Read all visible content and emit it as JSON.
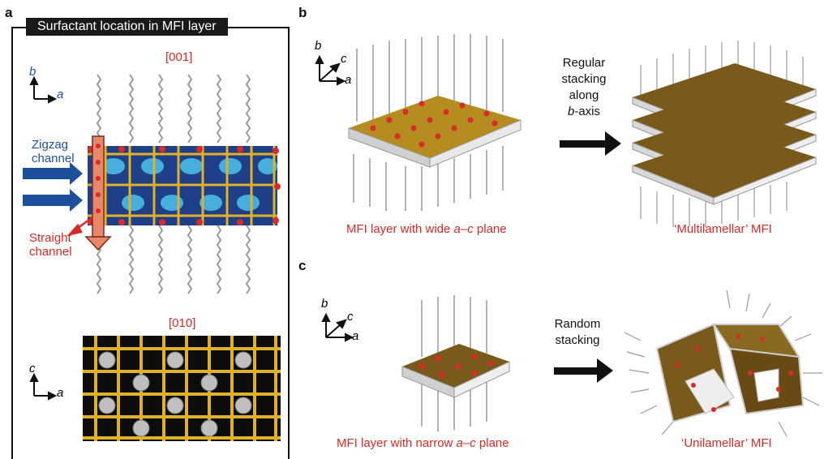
{
  "panel_a": {
    "label": "a",
    "title": "Surfactant location in MFI layer",
    "view_top": "[001]",
    "view_bottom": "[010]",
    "axes_top": {
      "vertical": "b",
      "horizontal": "a"
    },
    "axes_bottom": {
      "vertical": "c",
      "horizontal": "a"
    },
    "zigzag_line1": "Zigzag",
    "zigzag_line2": "channel",
    "straight_line1": "Straight",
    "straight_line2": "channel"
  },
  "panel_b": {
    "label": "b",
    "axes": {
      "vertical": "b",
      "diagonal": "c",
      "horizontal": "a"
    },
    "arrow_line1": "Regular",
    "arrow_line2": "stacking",
    "arrow_line3": "along",
    "arrow_line4_italic": "b",
    "arrow_line4_rest": "-axis",
    "left_caption_pre": "MFI layer with wide ",
    "left_caption_italic": "a–c",
    "left_caption_post": " plane",
    "right_caption": "‘Multilamellar’ MFI"
  },
  "panel_c": {
    "label": "c",
    "axes": {
      "vertical": "b",
      "diagonal": "c",
      "horizontal": "a"
    },
    "arrow_line1": "Random",
    "arrow_line2": "stacking",
    "left_caption_pre": "MFI layer with narrow ",
    "left_caption_italic": "a–c",
    "left_caption_post": " plane",
    "right_caption": "‘Unilamellar’ MFI"
  },
  "colors": {
    "caption_red": "#d62a2a",
    "arrow_blue": "#1e4f9a",
    "framework_gold": "#e0b22a",
    "slab_gray": "#cfcfcf",
    "oxygen_red": "#d92b2b"
  }
}
